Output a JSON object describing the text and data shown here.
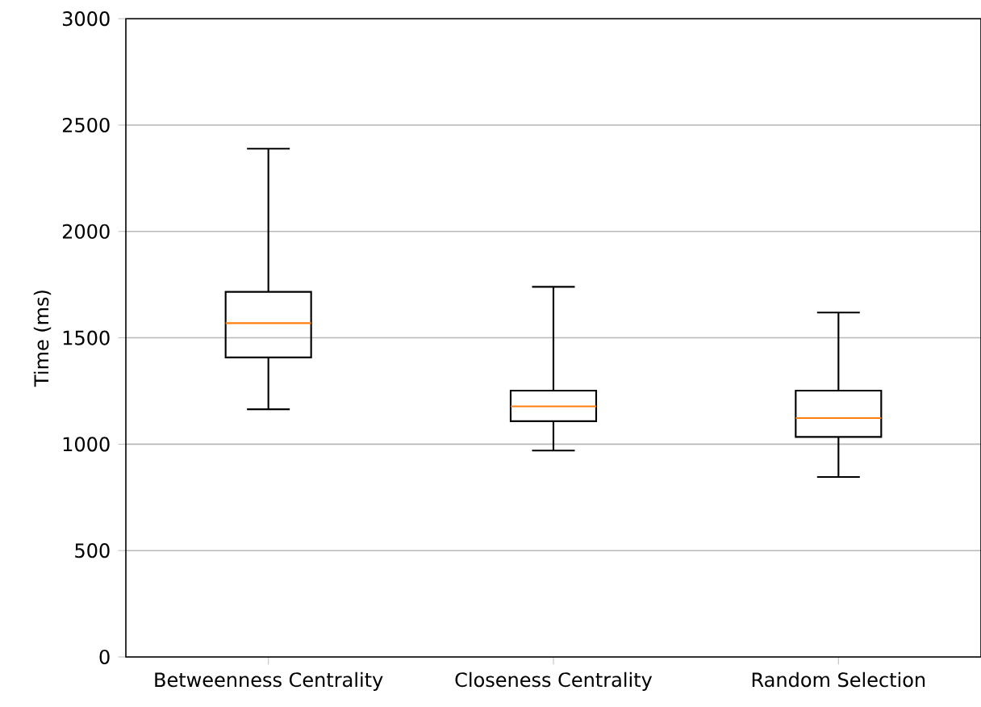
{
  "chart_data": {
    "type": "box",
    "ylabel": "Time (ms)",
    "categories": [
      "Betweenness Centrality",
      "Closeness Centrality",
      "Random Selection"
    ],
    "boxes": [
      {
        "low": 1164,
        "q1": 1408,
        "median": 1569,
        "q3": 1716,
        "high": 2389
      },
      {
        "low": 970,
        "q1": 1108,
        "median": 1178,
        "q3": 1252,
        "high": 1740
      },
      {
        "low": 846,
        "q1": 1034,
        "median": 1123,
        "q3": 1252,
        "high": 1619
      }
    ],
    "color": "#000000",
    "ylim": [
      0,
      3000
    ],
    "yticks": [
      0,
      500,
      1000,
      1500,
      2000,
      2500,
      3000
    ],
    "grid": "y"
  }
}
